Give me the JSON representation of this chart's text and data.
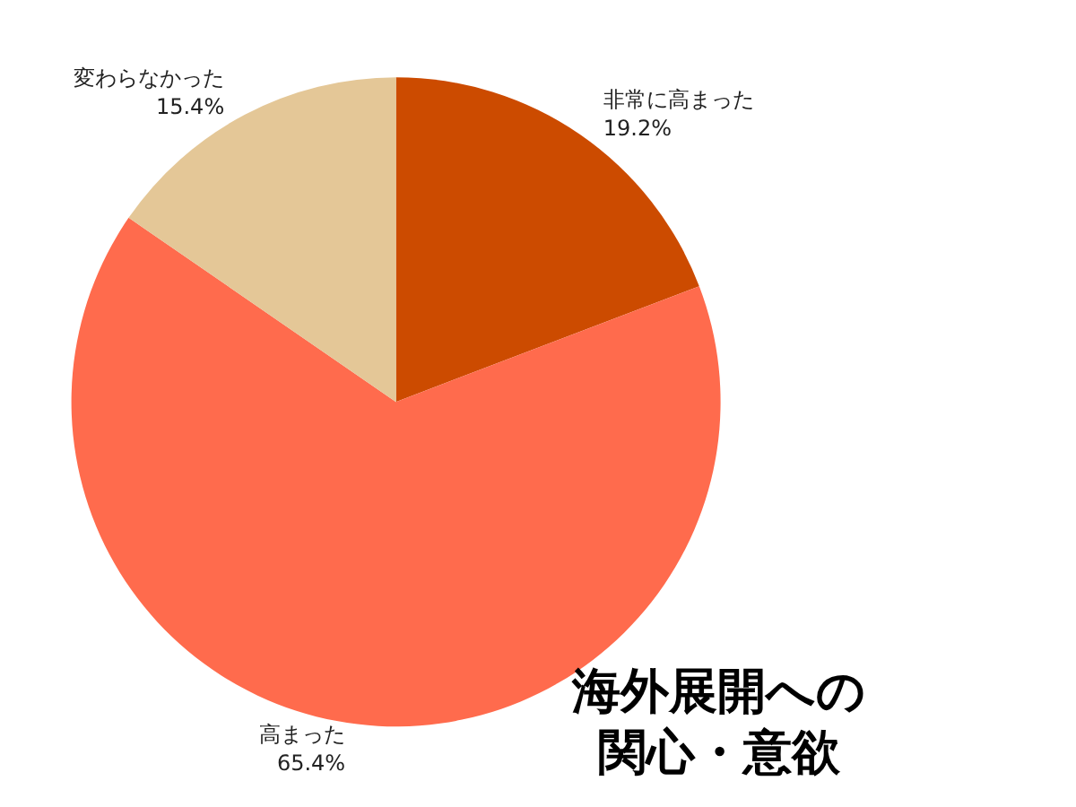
{
  "chart_data": {
    "type": "pie",
    "title": "海外展開への関心・意欲",
    "categories": [
      "非常に高まった",
      "高まった",
      "変わらなかった"
    ],
    "values": [
      19.2,
      65.4,
      15.4
    ],
    "value_labels": [
      "19.2%",
      "65.4%",
      "15.4%"
    ],
    "colors": [
      "#cc4b00",
      "#ff6b4d",
      "#e4c797"
    ],
    "legend": false
  }
}
